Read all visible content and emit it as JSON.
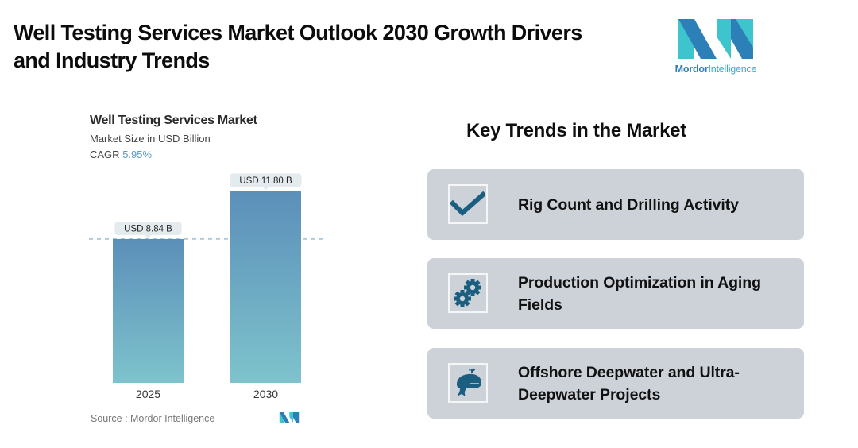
{
  "header": {
    "title": "Well Testing Services Market Outlook 2030 Growth Drivers and Industry Trends"
  },
  "brand": {
    "name_part1": "Mordor",
    "name_part2": "Intelligence",
    "icon": "mordor-intelligence-logo",
    "colors": {
      "dark": "#2d7fb8",
      "light": "#3dc4cc"
    }
  },
  "chart_data": {
    "type": "bar",
    "title": "Well Testing Services Market",
    "subtitle": "Market Size in USD Billion",
    "cagr_label": "CAGR",
    "cagr_value": "5.95%",
    "categories": [
      "2025",
      "2030"
    ],
    "values": [
      8.84,
      11.8
    ],
    "data_labels": [
      "USD 8.84 B",
      "USD 11.80 B"
    ],
    "xlabel": "",
    "ylabel": "",
    "ylim": [
      0,
      12.5
    ],
    "reference_line": {
      "value": 8.84,
      "style": "dashed"
    },
    "grid": false,
    "legend": "none",
    "colors": {
      "bar_top": "#5b8fb9",
      "bar_bottom": "#7ec3cc"
    },
    "source": "Source :  Mordor Intelligence"
  },
  "trends": {
    "title": "Key Trends in the Market",
    "items": [
      {
        "label": "Rig Count and Drilling Activity",
        "icon": "checkmark-icon"
      },
      {
        "label": "Production Optimization in Aging Fields",
        "icon": "gears-icon"
      },
      {
        "label": "Offshore Deepwater and Ultra-Deepwater Projects",
        "icon": "whale-icon"
      }
    ],
    "icon_color": "#1c5e80",
    "card_color": "#cdd2d9"
  }
}
